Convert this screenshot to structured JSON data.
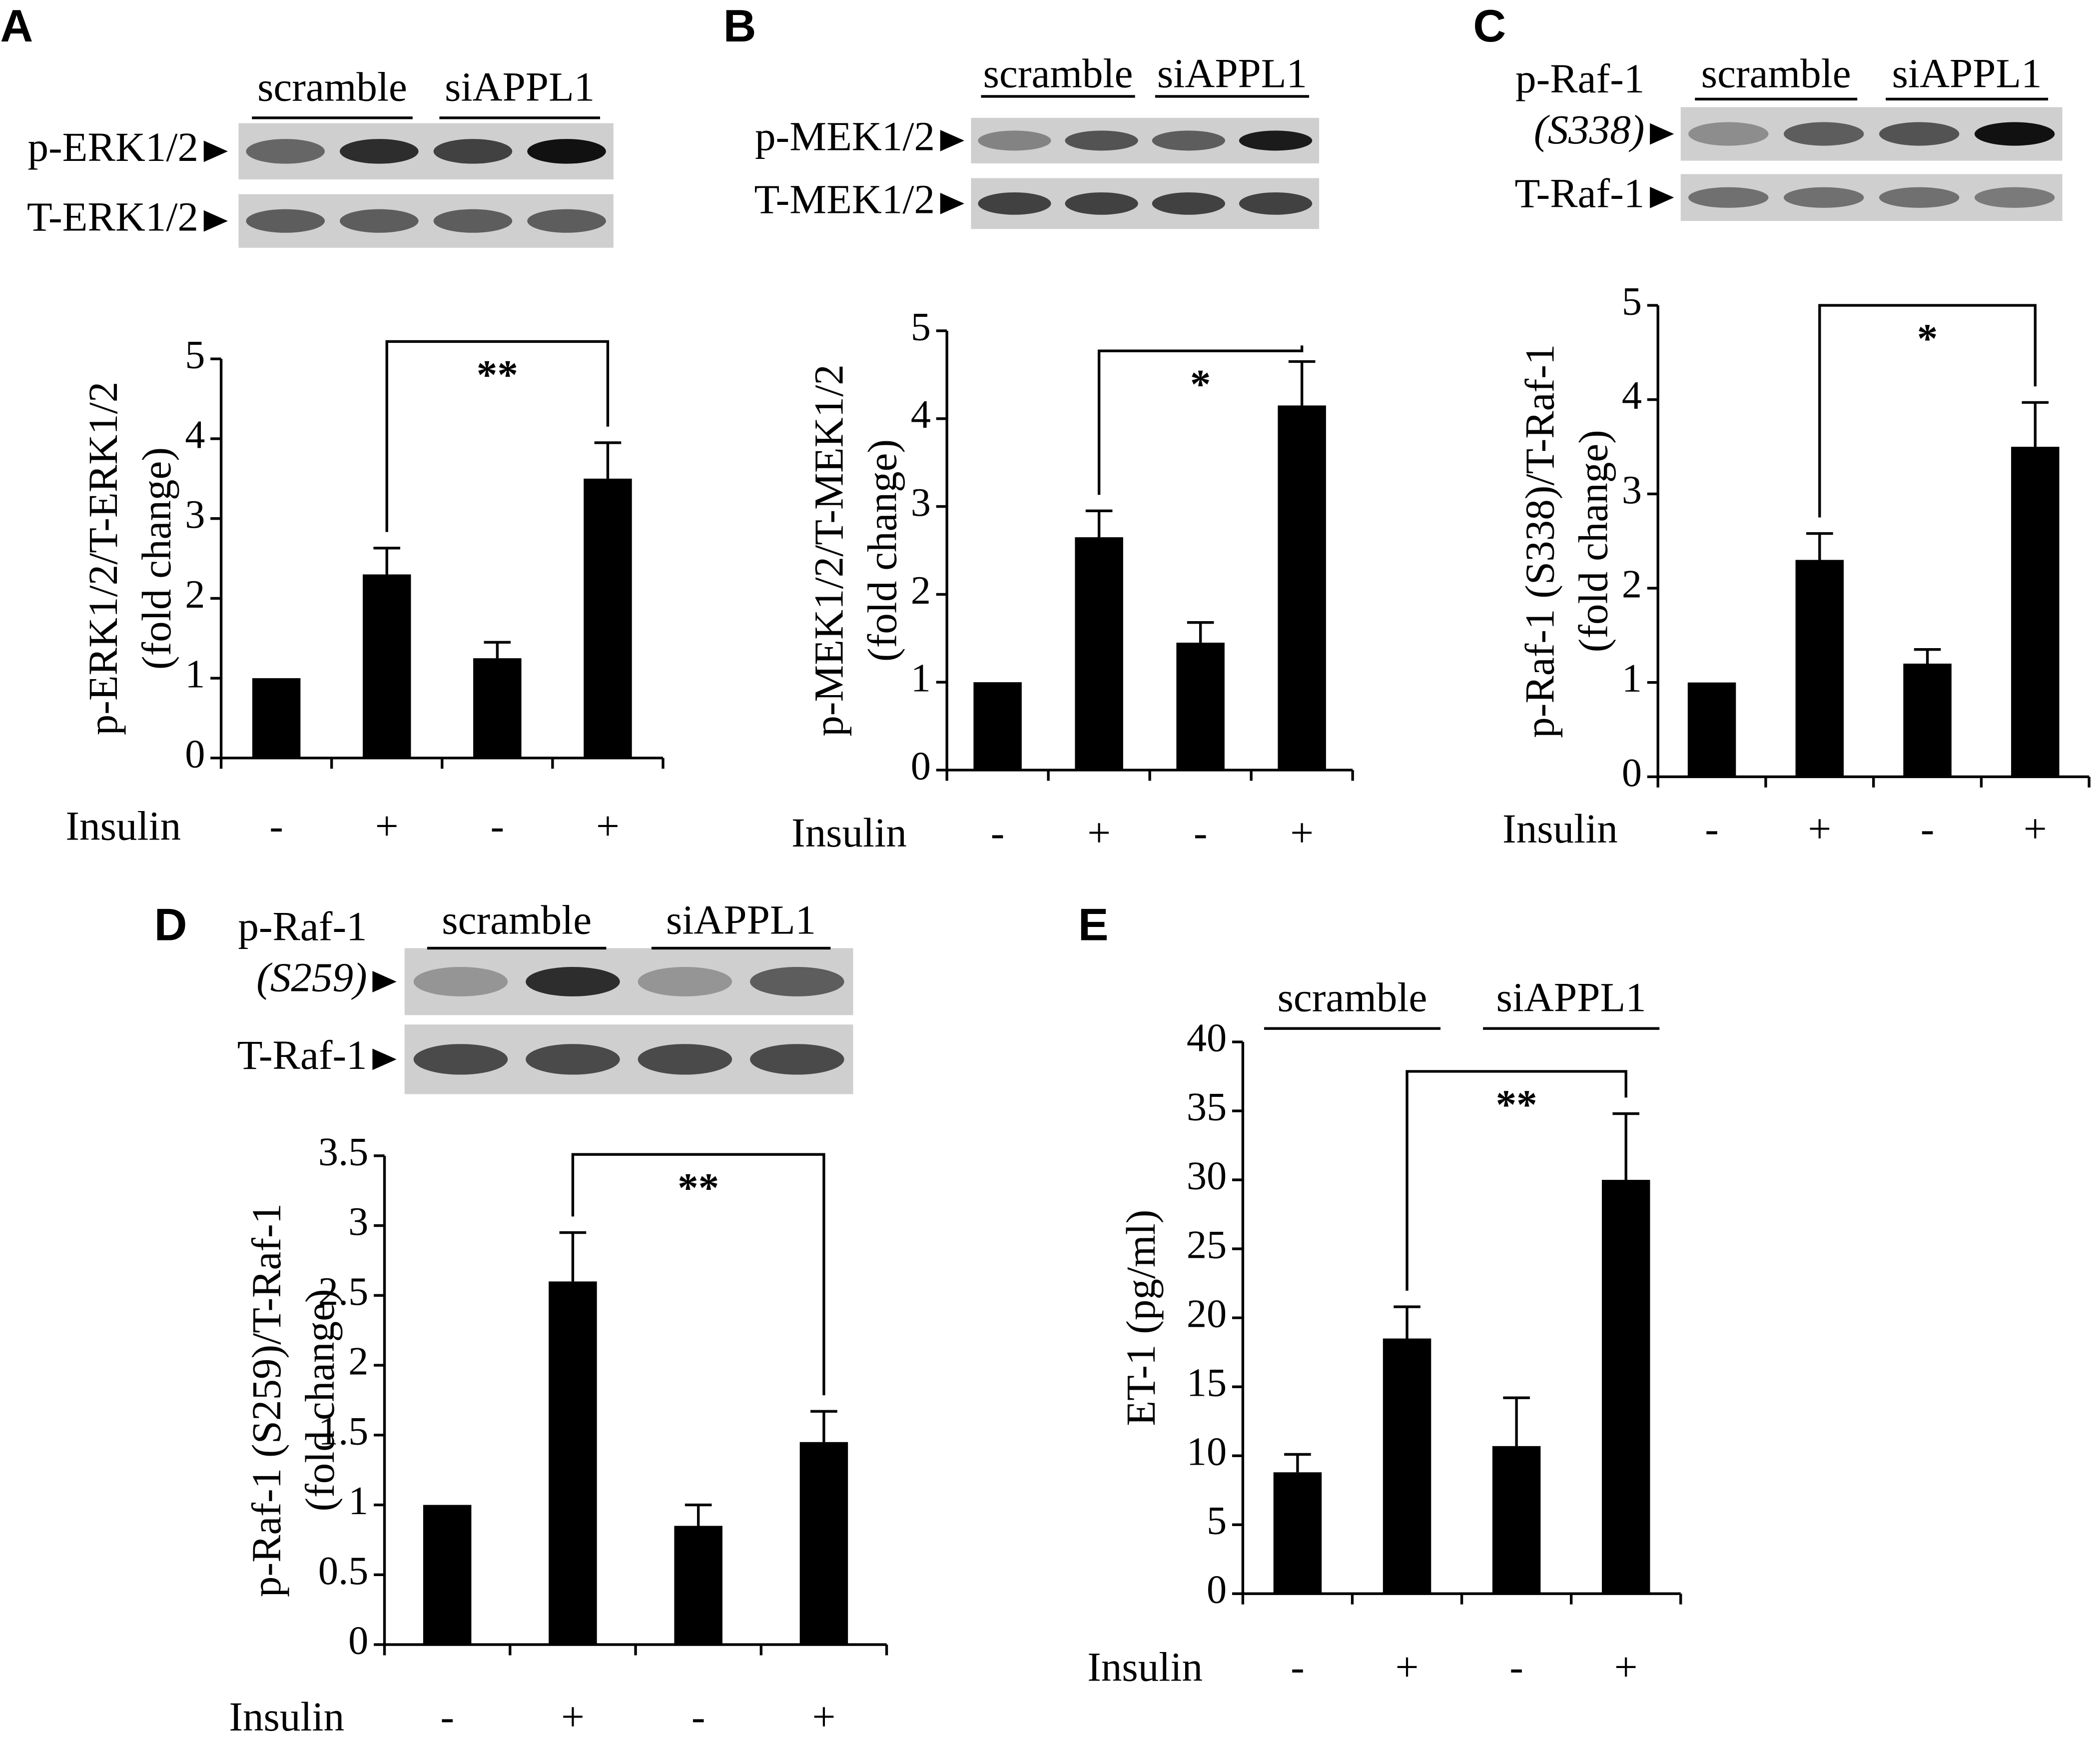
{
  "chart_data": [
    {
      "type": "bar",
      "panel": "A",
      "groups": [
        "scramble",
        "siAPPL1"
      ],
      "blot_rows": [
        {
          "label": "p-ERK1/2"
        },
        {
          "label": "T-ERK1/2"
        }
      ],
      "ylabel": [
        "p-ERK1/2/T-ERK1/2",
        "(fold change)"
      ],
      "xlabel": "Insulin",
      "categories": [
        "-",
        "+",
        "-",
        "+"
      ],
      "values": [
        1,
        2.3,
        1.25,
        3.5
      ],
      "errors": [
        null,
        0.33,
        0.2,
        0.45
      ],
      "color": "#000000",
      "ylim": [
        0,
        5
      ],
      "yticks": [
        0,
        1,
        2,
        3,
        4,
        5
      ],
      "significance": {
        "label": "**",
        "between": [
          1,
          3
        ]
      }
    },
    {
      "type": "bar",
      "panel": "B",
      "groups": [
        "scramble",
        "siAPPL1"
      ],
      "blot_rows": [
        {
          "label": "p-MEK1/2"
        },
        {
          "label": "T-MEK1/2"
        }
      ],
      "ylabel": [
        "p-MEK1/2/T-MEK1/2",
        "(fold change)"
      ],
      "xlabel": "Insulin",
      "categories": [
        "-",
        "+",
        "-",
        "+"
      ],
      "values": [
        1,
        2.65,
        1.45,
        4.15
      ],
      "errors": [
        null,
        0.3,
        0.23,
        0.5
      ],
      "color": "#000000",
      "ylim": [
        0,
        5
      ],
      "yticks": [
        0,
        1,
        2,
        3,
        4,
        5
      ],
      "significance": {
        "label": "*",
        "between": [
          1,
          3
        ]
      }
    },
    {
      "type": "bar",
      "panel": "C",
      "groups": [
        "scramble",
        "siAPPL1"
      ],
      "blot_rows": [
        {
          "label": "p-Raf-1",
          "sublabel": "(S338)"
        },
        {
          "label": "T-Raf-1"
        }
      ],
      "ylabel": [
        "p-Raf-1 (S338)/T-Raf-1",
        "(fold change)"
      ],
      "xlabel": "Insulin",
      "categories": [
        "-",
        "+",
        "-",
        "+"
      ],
      "values": [
        1,
        2.3,
        1.2,
        3.5
      ],
      "errors": [
        null,
        0.28,
        0.15,
        0.47
      ],
      "color": "#000000",
      "ylim": [
        0,
        5
      ],
      "yticks": [
        0,
        1,
        2,
        3,
        4,
        5
      ],
      "significance": {
        "label": "*",
        "between": [
          1,
          3
        ]
      }
    },
    {
      "type": "bar",
      "panel": "D",
      "groups": [
        "scramble",
        "siAPPL1"
      ],
      "blot_rows": [
        {
          "label": "p-Raf-1",
          "sublabel": "(S259)"
        },
        {
          "label": "T-Raf-1"
        }
      ],
      "ylabel": [
        "p-Raf-1 (S259)/T-Raf-1",
        "(fold change)"
      ],
      "xlabel": "Insulin",
      "categories": [
        "-",
        "+",
        "-",
        "+"
      ],
      "values": [
        1,
        2.6,
        0.85,
        1.45
      ],
      "errors": [
        null,
        0.35,
        0.15,
        0.22
      ],
      "color": "#000000",
      "ylim": [
        0,
        3.5
      ],
      "yticks": [
        0,
        0.5,
        1,
        1.5,
        2,
        2.5,
        3,
        3.5
      ],
      "significance": {
        "label": "**",
        "between": [
          1,
          3
        ]
      }
    },
    {
      "type": "bar",
      "panel": "E",
      "groups": [
        "scramble",
        "siAPPL1"
      ],
      "ylabel": [
        "ET-1 (pg/ml)"
      ],
      "xlabel": "Insulin",
      "categories": [
        "-",
        "+",
        "-",
        "+"
      ],
      "values": [
        8.8,
        18.5,
        10.7,
        30
      ],
      "errors": [
        1.3,
        2.3,
        3.5,
        4.8
      ],
      "color": "#000000",
      "ylim": [
        0,
        40
      ],
      "yticks": [
        0,
        5,
        10,
        15,
        20,
        25,
        30,
        35,
        40
      ],
      "significance": {
        "label": "**",
        "between": [
          1,
          3
        ]
      }
    }
  ]
}
